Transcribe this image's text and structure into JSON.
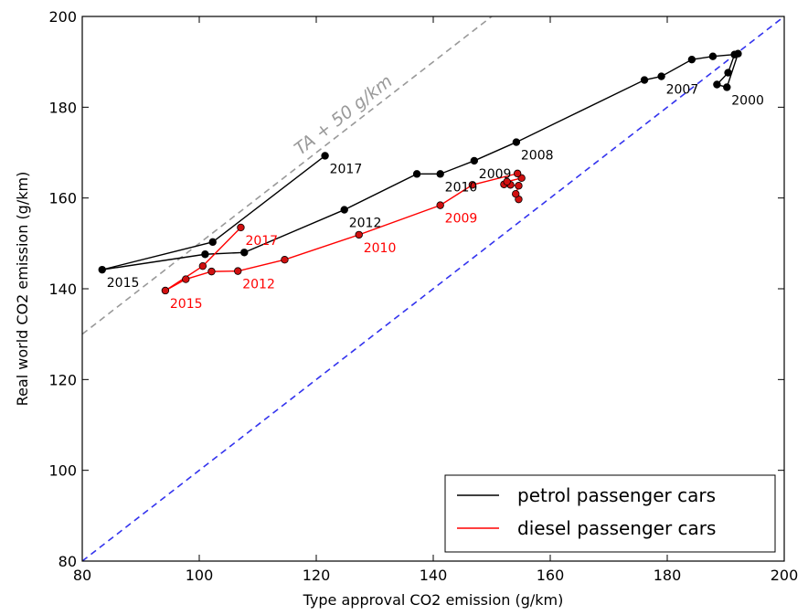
{
  "chart_data": {
    "type": "line",
    "xlabel": "Type approval CO2 emission (g/km)",
    "ylabel": "Real world CO2 emission (g/km)",
    "xlim": [
      80,
      200
    ],
    "ylim": [
      80,
      200
    ],
    "xticks": [
      80,
      100,
      120,
      140,
      160,
      180,
      200
    ],
    "yticks": [
      80,
      100,
      120,
      140,
      160,
      180,
      200
    ],
    "legend_position": "bottom-right",
    "reference_lines": [
      {
        "label": "",
        "slope": 1,
        "offset": 0,
        "color": "#3333ee"
      },
      {
        "label": "TA + 50 g/km",
        "slope": 1,
        "offset": 50,
        "color": "#999999"
      }
    ],
    "series": [
      {
        "name": "petrol passenger cars",
        "color": "#000000",
        "marker_color": "#000000",
        "points": [
          {
            "x": 192.1,
            "y": 191.8
          },
          {
            "x": 190.2,
            "y": 184.4
          },
          {
            "x": 188.5,
            "y": 185.0
          },
          {
            "x": 190.4,
            "y": 187.6
          },
          {
            "x": 191.5,
            "y": 191.6
          },
          {
            "x": 187.8,
            "y": 191.2
          },
          {
            "x": 184.2,
            "y": 190.5
          },
          {
            "x": 179.0,
            "y": 186.8
          },
          {
            "x": 176.1,
            "y": 186.0
          },
          {
            "x": 154.2,
            "y": 172.3
          },
          {
            "x": 147.0,
            "y": 168.2
          },
          {
            "x": 141.2,
            "y": 165.3
          },
          {
            "x": 137.2,
            "y": 165.3
          },
          {
            "x": 124.8,
            "y": 157.4
          },
          {
            "x": 107.7,
            "y": 148.0
          },
          {
            "x": 101.0,
            "y": 147.6
          },
          {
            "x": 83.4,
            "y": 144.2
          },
          {
            "x": 102.3,
            "y": 150.3
          },
          {
            "x": 121.5,
            "y": 169.3
          }
        ],
        "labels": [
          {
            "text": "2000",
            "x": 190.2,
            "y": 184.4
          },
          {
            "text": "2007",
            "x": 179.0,
            "y": 186.8
          },
          {
            "text": "2008",
            "x": 154.2,
            "y": 172.3
          },
          {
            "text": "2009",
            "x": 147.0,
            "y": 168.2
          },
          {
            "text": "2010",
            "x": 141.2,
            "y": 165.3
          },
          {
            "text": "2012",
            "x": 124.8,
            "y": 157.4
          },
          {
            "text": "2015",
            "x": 83.4,
            "y": 144.2
          },
          {
            "text": "2017",
            "x": 121.5,
            "y": 169.3
          }
        ]
      },
      {
        "name": "diesel passenger cars",
        "color": "#ff0000",
        "marker_color": "#d01010",
        "points": [
          {
            "x": 154.6,
            "y": 159.7
          },
          {
            "x": 154.1,
            "y": 160.9
          },
          {
            "x": 154.6,
            "y": 162.7
          },
          {
            "x": 153.2,
            "y": 162.9
          },
          {
            "x": 152.1,
            "y": 163.0
          },
          {
            "x": 152.6,
            "y": 163.6
          },
          {
            "x": 155.1,
            "y": 164.4
          },
          {
            "x": 154.4,
            "y": 165.4
          },
          {
            "x": 146.7,
            "y": 162.9
          },
          {
            "x": 141.2,
            "y": 158.4
          },
          {
            "x": 127.3,
            "y": 151.9
          },
          {
            "x": 114.6,
            "y": 146.4
          },
          {
            "x": 106.6,
            "y": 143.9
          },
          {
            "x": 102.1,
            "y": 143.8
          },
          {
            "x": 97.7,
            "y": 142.1
          },
          {
            "x": 94.2,
            "y": 139.6
          },
          {
            "x": 100.6,
            "y": 145.0
          },
          {
            "x": 107.1,
            "y": 153.5
          }
        ],
        "labels": [
          {
            "text": "2009",
            "x": 141.2,
            "y": 158.4
          },
          {
            "text": "2010",
            "x": 127.3,
            "y": 151.9
          },
          {
            "text": "2012",
            "x": 106.6,
            "y": 143.9
          },
          {
            "text": "2015",
            "x": 94.2,
            "y": 139.6
          },
          {
            "text": "2017",
            "x": 107.1,
            "y": 153.5
          }
        ]
      }
    ]
  }
}
